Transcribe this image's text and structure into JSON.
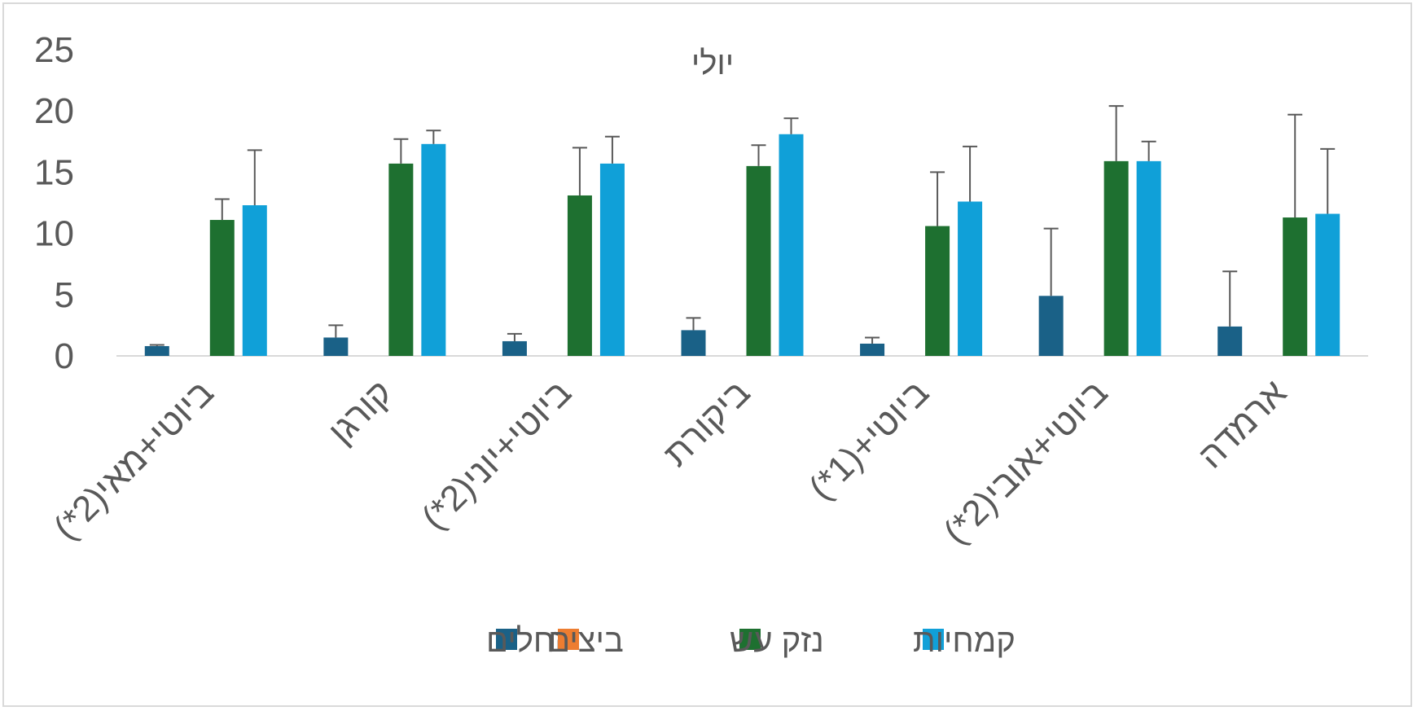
{
  "chart_data": {
    "type": "bar",
    "title": "יולי",
    "xlabel": "",
    "ylabel": "",
    "ylim": [
      0,
      25
    ],
    "yticks": [
      0,
      5,
      10,
      15,
      20,
      25
    ],
    "grid": false,
    "legend_position": "bottom",
    "categories": [
      "ביוטי+מאי(2*)",
      "קורגן",
      "ביוטי+יוני(2*)",
      "ביקורת",
      "ביוטי+(1*)",
      "ביוטי+אובי(2*)",
      "ארמדה"
    ],
    "series": [
      {
        "name": "זחלים",
        "color": "#1a6187",
        "values": [
          0.8,
          1.5,
          1.2,
          2.1,
          1.0,
          4.9,
          2.4
        ],
        "error": [
          0.1,
          1.0,
          0.6,
          1.0,
          0.5,
          5.5,
          4.5
        ]
      },
      {
        "name": "ביצים",
        "color": "#ed7d31",
        "values": [
          0,
          0,
          0,
          0,
          0,
          0,
          0
        ],
        "error": [
          0,
          0,
          0,
          0,
          0,
          0,
          0
        ]
      },
      {
        "name": "נזק עש",
        "color": "#1e7030",
        "values": [
          11.1,
          15.7,
          13.1,
          15.5,
          10.6,
          15.9,
          11.3
        ],
        "error": [
          1.7,
          2.0,
          3.9,
          1.7,
          4.4,
          4.5,
          8.4
        ]
      },
      {
        "name": "קמחיות",
        "color": "#10a0d8",
        "values": [
          12.3,
          17.3,
          15.7,
          18.1,
          12.6,
          15.9,
          11.6
        ],
        "error": [
          4.5,
          1.1,
          2.2,
          1.3,
          4.5,
          1.6,
          5.3
        ]
      }
    ]
  }
}
